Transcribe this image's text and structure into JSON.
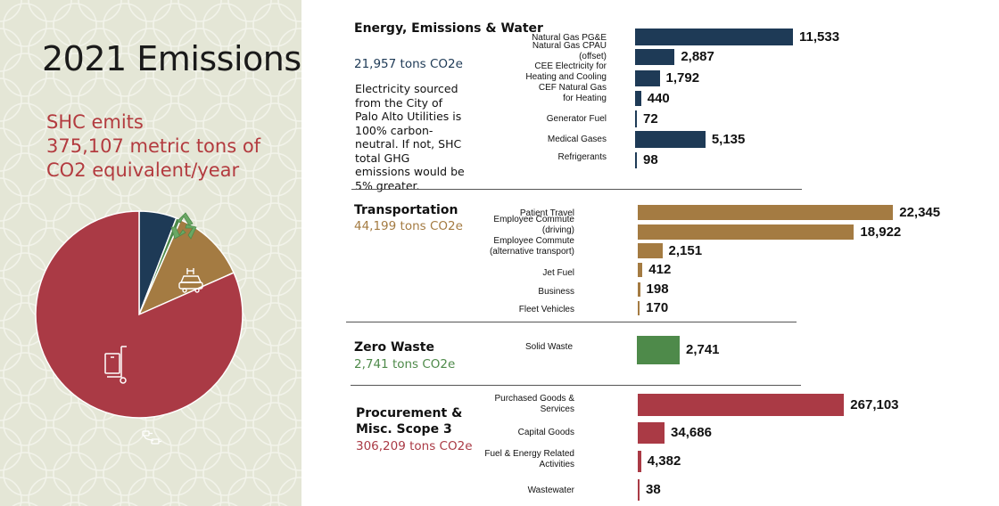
{
  "title": "2021 Emissions",
  "summary": [
    "SHC emits",
    "375,107 metric tons of",
    "CO2 equivalent/year"
  ],
  "note": "Electricity sourced from the City of Palo Alto Utilities is 100% carbon-neutral. If not, SHC total GHG emissions would be 5% greater.",
  "pie_icons": [
    "plug-icon",
    "recycle-icon",
    "car-icon",
    "cart-icon"
  ],
  "chart_data": [
    {
      "type": "bar",
      "title": "Energy, Emissions & Water",
      "subtitle": "21,957 tons CO2e",
      "color": "#1e3a56",
      "categories": [
        "Natural Gas PG&E",
        "Natural Gas CPAU (offset)",
        "CEE Electricity for Heating and Cooling",
        "CEF Natural Gas for Heating",
        "Generator Fuel",
        "Medical Gases",
        "Refrigerants"
      ],
      "values": [
        11533,
        2887,
        1792,
        440,
        72,
        5135,
        98
      ],
      "labels": [
        "11,533",
        "2,887",
        "1,792",
        "440",
        "72",
        "5,135",
        "98"
      ]
    },
    {
      "type": "bar",
      "title": "Transportation",
      "subtitle": "44,199 tons CO2e",
      "color": "#a47b42",
      "categories": [
        "Patient Travel",
        "Employee Commute (driving)",
        "Employee Commute (alternative transport)",
        "Jet Fuel",
        "Business",
        "Fleet Vehicles"
      ],
      "values": [
        22345,
        18922,
        2151,
        412,
        198,
        170
      ],
      "labels": [
        "22,345",
        "18,922",
        "2,151",
        "412",
        "198",
        "170"
      ]
    },
    {
      "type": "bar",
      "title": "Zero Waste",
      "subtitle": "2,741 tons CO2e",
      "color": "#4e8a4a",
      "categories": [
        "Solid Waste"
      ],
      "values": [
        2741
      ],
      "labels": [
        "2,741"
      ]
    },
    {
      "type": "bar",
      "title": "Procurement & Misc. Scope 3",
      "subtitle": "306,209 tons CO2e",
      "color": "#aa3a45",
      "categories": [
        "Purchased Goods & Services",
        "Capital Goods",
        "Fuel & Energy Related Activities",
        "Wastewater"
      ],
      "values": [
        267103,
        34686,
        4382,
        38
      ],
      "labels": [
        "267,103",
        "34,686",
        "4,382",
        "38"
      ]
    },
    {
      "type": "pie",
      "categories": [
        "Energy, Emissions & Water",
        "Zero Waste",
        "Transportation",
        "Procurement & Misc. Scope 3"
      ],
      "values": [
        21957,
        2741,
        44199,
        306209
      ],
      "colors": [
        "#1e3a56",
        "#4e8a4a",
        "#a47b42",
        "#aa3a45"
      ]
    }
  ]
}
